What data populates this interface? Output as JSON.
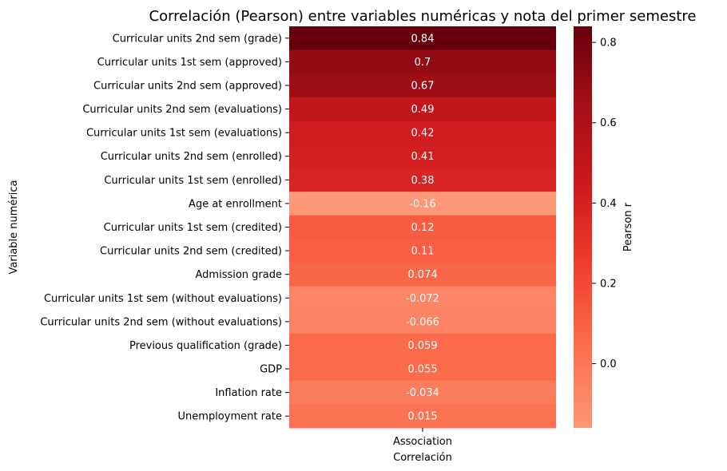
{
  "chart_data": {
    "type": "heatmap",
    "title": "Correlación (Pearson) entre variables numéricas y nota del primer semestre",
    "xlabel": "Correlación",
    "ylabel": "Variable numérica",
    "columns": [
      "Association"
    ],
    "rows": [
      {
        "label": "Curricular units 2nd sem (grade)",
        "value": 0.84,
        "text": "0.84"
      },
      {
        "label": "Curricular units 1st sem (approved)",
        "value": 0.7,
        "text": "0.7"
      },
      {
        "label": "Curricular units 2nd sem (approved)",
        "value": 0.67,
        "text": "0.67"
      },
      {
        "label": "Curricular units 2nd sem (evaluations)",
        "value": 0.49,
        "text": "0.49"
      },
      {
        "label": "Curricular units 1st sem (evaluations)",
        "value": 0.42,
        "text": "0.42"
      },
      {
        "label": "Curricular units 2nd sem (enrolled)",
        "value": 0.41,
        "text": "0.41"
      },
      {
        "label": "Curricular units 1st sem (enrolled)",
        "value": 0.38,
        "text": "0.38"
      },
      {
        "label": "Age at enrollment",
        "value": -0.16,
        "text": "-0.16"
      },
      {
        "label": "Curricular units 1st sem (credited)",
        "value": 0.12,
        "text": "0.12"
      },
      {
        "label": "Curricular units 2nd sem (credited)",
        "value": 0.11,
        "text": "0.11"
      },
      {
        "label": "Admission grade",
        "value": 0.074,
        "text": "0.074"
      },
      {
        "label": "Curricular units 1st sem (without evaluations)",
        "value": -0.072,
        "text": "-0.072"
      },
      {
        "label": "Curricular units 2nd sem (without evaluations)",
        "value": -0.066,
        "text": "-0.066"
      },
      {
        "label": "Previous qualification (grade)",
        "value": 0.059,
        "text": "0.059"
      },
      {
        "label": "GDP",
        "value": 0.055,
        "text": "0.055"
      },
      {
        "label": "Inflation rate",
        "value": -0.034,
        "text": "-0.034"
      },
      {
        "label": "Unemployment rate",
        "value": 0.015,
        "text": "0.015"
      }
    ],
    "colorbar": {
      "label": "Pearson r",
      "min": -0.16,
      "max": 0.84,
      "ticks": [
        {
          "value": 0.8,
          "text": "0.8"
        },
        {
          "value": 0.6,
          "text": "0.6"
        },
        {
          "value": 0.4,
          "text": "0.4"
        },
        {
          "value": 0.2,
          "text": "0.2"
        },
        {
          "value": 0.0,
          "text": "0.0"
        }
      ],
      "colormap": "Reds",
      "color_low": "#fc8a6a",
      "color_high": "#67000d"
    },
    "cell_text_color": "#ffffff"
  }
}
